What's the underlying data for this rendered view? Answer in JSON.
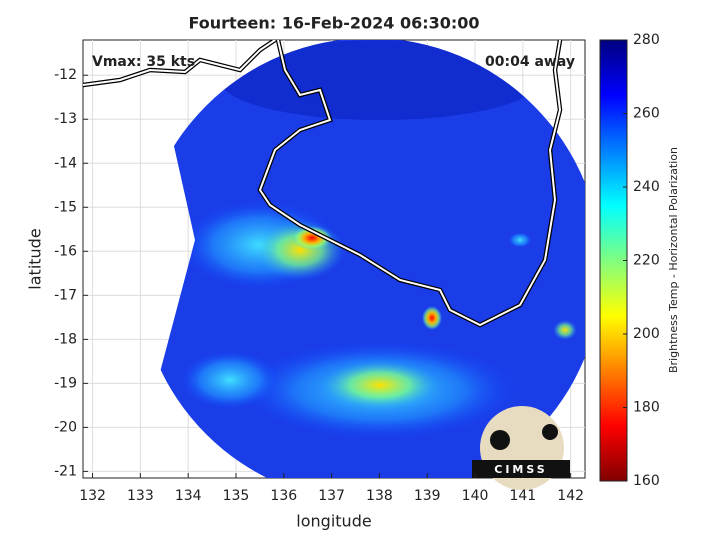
{
  "title": "Fourteen: 16-Feb-2024 06:30:00",
  "annotations": {
    "vmax": "Vmax: 35 kts",
    "time_away": "00:04 away"
  },
  "map": {
    "xlabel": "longitude",
    "ylabel": "latitude",
    "xlim": [
      131.8,
      142.3
    ],
    "ylim": [
      -21.15,
      -11.2
    ],
    "xticks": [
      132,
      133,
      134,
      135,
      136,
      137,
      138,
      139,
      140,
      141,
      142
    ],
    "yticks": [
      -12,
      -13,
      -14,
      -15,
      -16,
      -17,
      -18,
      -19,
      -20,
      -21
    ],
    "grid": true
  },
  "colorbar": {
    "label": "Brightness Temp - Horizontal Polarization",
    "lim": [
      160,
      280
    ],
    "ticks": [
      160,
      180,
      200,
      220,
      240,
      260,
      280
    ],
    "colors": [
      "#800000",
      "#ff0000",
      "#ff8000",
      "#ffff00",
      "#80ff80",
      "#00ffff",
      "#0080ff",
      "#0000ff",
      "#000080"
    ]
  },
  "logo": "CIMSS"
}
